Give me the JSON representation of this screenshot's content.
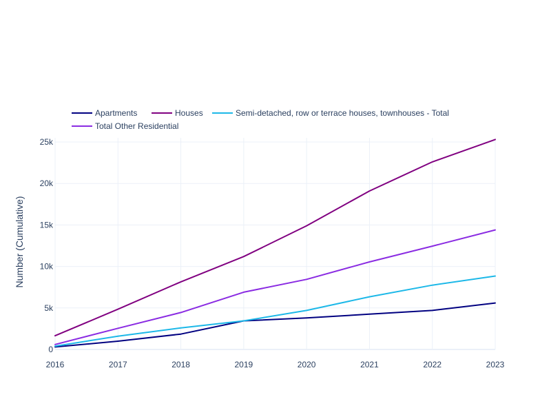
{
  "chart_data": {
    "type": "line",
    "title": "",
    "xlabel": "",
    "ylabel": "Number (Cumulative)",
    "x": [
      2016,
      2017,
      2018,
      2019,
      2020,
      2021,
      2022,
      2023
    ],
    "x_tick_labels": [
      "2016",
      "2017",
      "2018",
      "2019",
      "2020",
      "2021",
      "2022",
      "2023"
    ],
    "y_ticks": [
      0,
      5000,
      10000,
      15000,
      20000,
      25000
    ],
    "y_tick_labels": [
      "0",
      "5k",
      "10k",
      "15k",
      "20k",
      "25k"
    ],
    "xlim": [
      2016,
      2023
    ],
    "ylim": [
      0,
      25000
    ],
    "grid": true,
    "legend_position": "top-left",
    "series": [
      {
        "name": "Apartments",
        "color": "#000080",
        "values": [
          300,
          1000,
          1850,
          3450,
          3800,
          4250,
          4700,
          5600
        ]
      },
      {
        "name": "Houses",
        "color": "#800080",
        "values": [
          1650,
          4850,
          8150,
          11200,
          14900,
          19100,
          22600,
          25300
        ]
      },
      {
        "name": "Semi-detached, row or terrace houses, townhouses - Total",
        "color": "#1cb8e8",
        "values": [
          400,
          1600,
          2600,
          3450,
          4700,
          6350,
          7750,
          8850
        ]
      },
      {
        "name": "Total Other Residential",
        "color": "#8a2be2",
        "values": [
          600,
          2550,
          4450,
          6900,
          8450,
          10550,
          12450,
          14400
        ]
      }
    ]
  }
}
